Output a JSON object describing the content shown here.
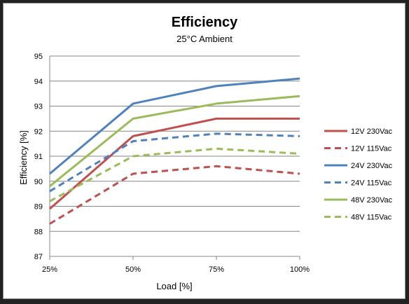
{
  "chart_data": {
    "type": "line",
    "title": "Efficiency",
    "subtitle": "25°C Ambient",
    "xlabel": "Load [%]",
    "ylabel": "Efficiency [%]",
    "categories": [
      "25%",
      "50%",
      "75%",
      "100%"
    ],
    "ylim": [
      87,
      95
    ],
    "yticks": [
      "87",
      "88",
      "89",
      "90",
      "91",
      "92",
      "93",
      "94",
      "95"
    ],
    "grid": true,
    "legend_position": "right",
    "series": [
      {
        "name": "12V 230Vac",
        "values": [
          88.9,
          91.8,
          92.5,
          92.5
        ],
        "color": "#c0504d",
        "dashed": false
      },
      {
        "name": "12V 115Vac",
        "values": [
          88.3,
          90.3,
          90.6,
          90.3
        ],
        "color": "#c0504d",
        "dashed": true
      },
      {
        "name": "24V 230Vac",
        "values": [
          90.3,
          93.1,
          93.8,
          94.1
        ],
        "color": "#4f81bd",
        "dashed": false
      },
      {
        "name": "24V 115Vac",
        "values": [
          89.6,
          91.6,
          91.9,
          91.8
        ],
        "color": "#4f81bd",
        "dashed": true
      },
      {
        "name": "48V 230Vac",
        "values": [
          89.8,
          92.5,
          93.1,
          93.4
        ],
        "color": "#9bbb59",
        "dashed": false
      },
      {
        "name": "48V 115Vac",
        "values": [
          89.2,
          91.0,
          91.3,
          91.1
        ],
        "color": "#9bbb59",
        "dashed": true
      }
    ]
  }
}
